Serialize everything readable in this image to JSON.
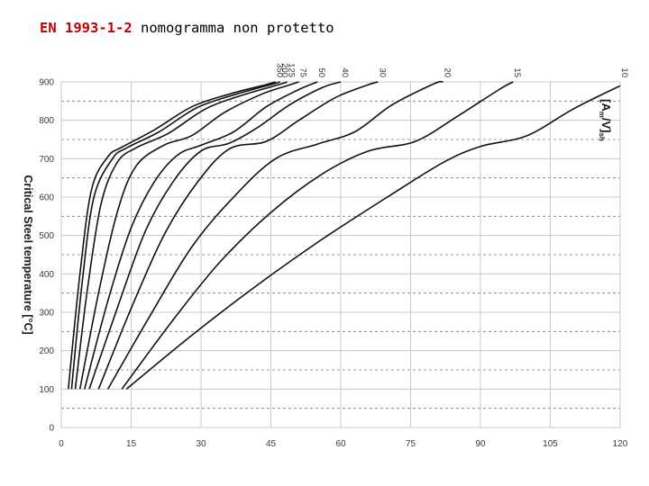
{
  "header": {
    "code": "EN 1993-1-2",
    "rest": " nomogramma non protetto"
  },
  "chart_data": {
    "type": "line",
    "title": "",
    "ylabel": "Critical Steel temperature [°C]",
    "xlabel": "",
    "series_label": {
      "main": "[A",
      "sub1": "m",
      "mid": "/V]",
      "sub2": "sh"
    },
    "xlim": [
      0,
      120
    ],
    "ylim": [
      0,
      900
    ],
    "xticks": [
      0,
      15,
      30,
      45,
      60,
      75,
      90,
      105,
      120
    ],
    "yticks": [
      0,
      100,
      200,
      300,
      400,
      500,
      600,
      700,
      800,
      900
    ],
    "grid": "major solid, minor dashed every 50",
    "series": [
      {
        "name": "350",
        "points": [
          [
            1.5,
            100
          ],
          [
            4,
            400
          ],
          [
            6.5,
            620
          ],
          [
            10,
            705
          ],
          [
            13,
            730
          ],
          [
            20,
            775
          ],
          [
            28,
            835
          ],
          [
            36,
            868
          ],
          [
            44,
            893
          ],
          [
            46,
            900
          ]
        ]
      },
      {
        "name": "200",
        "points": [
          [
            2.2,
            100
          ],
          [
            4.5,
            380
          ],
          [
            7,
            600
          ],
          [
            11,
            700
          ],
          [
            14,
            728
          ],
          [
            21,
            770
          ],
          [
            29,
            832
          ],
          [
            37,
            866
          ],
          [
            45,
            893
          ],
          [
            47,
            900
          ]
        ]
      },
      {
        "name": "125",
        "points": [
          [
            3,
            100
          ],
          [
            5.5,
            350
          ],
          [
            8.5,
            580
          ],
          [
            12,
            690
          ],
          [
            16,
            728
          ],
          [
            23,
            766
          ],
          [
            31,
            830
          ],
          [
            39,
            866
          ],
          [
            47,
            894
          ],
          [
            48.5,
            900
          ]
        ]
      },
      {
        "name": "75",
        "points": [
          [
            4,
            100
          ],
          [
            8,
            350
          ],
          [
            12,
            560
          ],
          [
            16,
            680
          ],
          [
            22,
            735
          ],
          [
            28,
            760
          ],
          [
            35,
            820
          ],
          [
            43,
            868
          ],
          [
            49,
            892
          ],
          [
            51,
            900
          ]
        ]
      },
      {
        "name": "50",
        "points": [
          [
            5,
            100
          ],
          [
            10,
            330
          ],
          [
            15,
            520
          ],
          [
            20,
            640
          ],
          [
            25,
            710
          ],
          [
            30,
            735
          ],
          [
            37,
            770
          ],
          [
            44,
            835
          ],
          [
            51,
            880
          ],
          [
            55,
            900
          ]
        ]
      },
      {
        "name": "40",
        "points": [
          [
            6,
            100
          ],
          [
            12,
            310
          ],
          [
            18,
            510
          ],
          [
            24,
            640
          ],
          [
            30,
            720
          ],
          [
            36,
            740
          ],
          [
            42,
            780
          ],
          [
            49,
            840
          ],
          [
            56,
            885
          ],
          [
            60,
            900
          ]
        ]
      },
      {
        "name": "30",
        "points": [
          [
            8,
            100
          ],
          [
            15,
            310
          ],
          [
            22,
            500
          ],
          [
            29,
            635
          ],
          [
            36,
            725
          ],
          [
            44,
            745
          ],
          [
            51,
            800
          ],
          [
            59,
            860
          ],
          [
            66,
            893
          ],
          [
            68,
            900
          ]
        ]
      },
      {
        "name": "20",
        "points": [
          [
            10,
            100
          ],
          [
            19,
            290
          ],
          [
            28,
            470
          ],
          [
            37,
            600
          ],
          [
            46,
            700
          ],
          [
            55,
            738
          ],
          [
            63,
            770
          ],
          [
            71,
            840
          ],
          [
            80,
            895
          ],
          [
            82,
            900
          ]
        ]
      },
      {
        "name": "15",
        "points": [
          [
            13,
            100
          ],
          [
            24,
            280
          ],
          [
            34,
            430
          ],
          [
            45,
            560
          ],
          [
            56,
            660
          ],
          [
            66,
            720
          ],
          [
            76,
            745
          ],
          [
            85,
            810
          ],
          [
            94,
            880
          ],
          [
            97,
            900
          ]
        ]
      },
      {
        "name": "10",
        "points": [
          [
            14,
            100
          ],
          [
            28,
            240
          ],
          [
            42,
            370
          ],
          [
            56,
            490
          ],
          [
            70,
            600
          ],
          [
            82,
            690
          ],
          [
            90,
            732
          ],
          [
            100,
            760
          ],
          [
            110,
            830
          ],
          [
            120,
            890
          ]
        ]
      }
    ]
  }
}
